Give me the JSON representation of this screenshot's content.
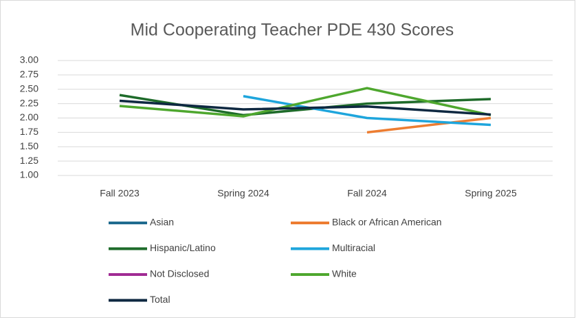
{
  "chart_data": {
    "type": "line",
    "title": "Mid Cooperating Teacher PDE 430 Scores",
    "categories": [
      "Fall 2023",
      "Spring 2024",
      "Fall 2024",
      "Spring 2025"
    ],
    "series": [
      {
        "name": "Asian",
        "color": "#1f6b8f",
        "values": [
          null,
          null,
          null,
          null
        ]
      },
      {
        "name": "Black or African American",
        "color": "#ed7d31",
        "values": [
          null,
          null,
          1.75,
          2.0
        ]
      },
      {
        "name": "Hispanic/Latino",
        "color": "#1e6b2a",
        "values": [
          2.4,
          2.05,
          2.25,
          2.33
        ]
      },
      {
        "name": "Multiracial",
        "color": "#1ea5dc",
        "values": [
          null,
          2.38,
          2.0,
          1.88
        ]
      },
      {
        "name": "Not Disclosed",
        "color": "#a02b93",
        "values": [
          null,
          null,
          null,
          null
        ]
      },
      {
        "name": "White",
        "color": "#4ea72e",
        "values": [
          2.21,
          2.03,
          2.52,
          2.05
        ]
      },
      {
        "name": "Total",
        "color": "#0e2841",
        "values": [
          2.3,
          2.15,
          2.2,
          2.06
        ]
      }
    ],
    "ylim": [
      1,
      3
    ],
    "yticks": [
      {
        "value": 1,
        "label": "1.00"
      },
      {
        "value": 1.25,
        "label": "1.25"
      },
      {
        "value": 1.5,
        "label": "1.50"
      },
      {
        "value": 1.75,
        "label": "1.75"
      },
      {
        "value": 2,
        "label": "2.00"
      },
      {
        "value": 2.25,
        "label": "2.25"
      },
      {
        "value": 2.5,
        "label": "2.50"
      },
      {
        "value": 2.75,
        "label": "2.75"
      },
      {
        "value": 3,
        "label": "3.00"
      }
    ],
    "grid": true,
    "legend": "bottom"
  }
}
